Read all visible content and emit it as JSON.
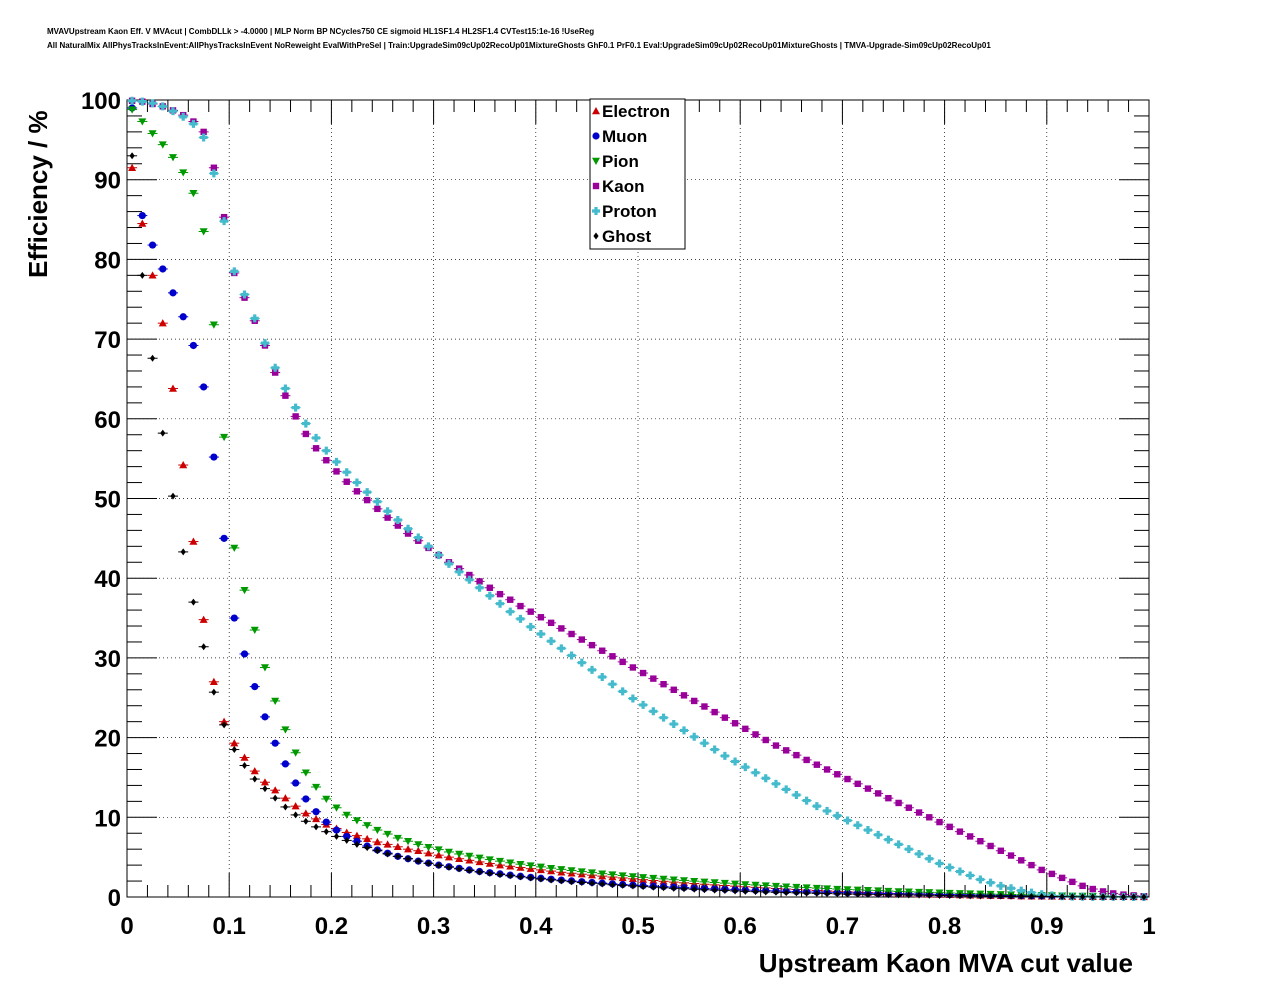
{
  "header": {
    "line1": "MVAVUpstream Kaon Eff. V MVAcut | CombDLLk > -4.0000 | MLP Norm BP NCycles750 CE sigmoid HL1SF1.4 HL2SF1.4 CVTest15:1e-16 !UseReg",
    "line2": "All NaturalMix AllPhysTracksInEvent:AllPhysTracksInEvent NoReweight EvalWithPreSel | Train:UpgradeSim09cUp02RecoUp01MixtureGhosts GhF0.1 PrF0.1 Eval:UpgradeSim09cUp02RecoUp01MixtureGhosts | TMVA-Upgrade-Sim09cUp02RecoUp01"
  },
  "chart_data": {
    "type": "scatter",
    "xlabel": "Upstream Kaon MVA cut value",
    "ylabel": "Efficiency / %",
    "xlim": [
      0,
      1
    ],
    "ylim": [
      0,
      100
    ],
    "x_ticks": [
      "0",
      "0.1",
      "0.2",
      "0.3",
      "0.4",
      "0.5",
      "0.6",
      "0.7",
      "0.8",
      "0.9",
      "1"
    ],
    "y_ticks": [
      "0",
      "10",
      "20",
      "30",
      "40",
      "50",
      "60",
      "70",
      "80",
      "90",
      "100"
    ],
    "grid": true,
    "legend_position": "top-center",
    "x": [
      0.005,
      0.015,
      0.025,
      0.035,
      0.045,
      0.055,
      0.065,
      0.075,
      0.085,
      0.095,
      0.105,
      0.115,
      0.125,
      0.135,
      0.145,
      0.155,
      0.165,
      0.175,
      0.185,
      0.195,
      0.205,
      0.215,
      0.225,
      0.235,
      0.245,
      0.255,
      0.265,
      0.275,
      0.285,
      0.295,
      0.305,
      0.315,
      0.325,
      0.335,
      0.345,
      0.355,
      0.365,
      0.375,
      0.385,
      0.395,
      0.405,
      0.415,
      0.425,
      0.435,
      0.445,
      0.455,
      0.465,
      0.475,
      0.485,
      0.495,
      0.505,
      0.515,
      0.525,
      0.535,
      0.545,
      0.555,
      0.565,
      0.575,
      0.585,
      0.595,
      0.605,
      0.615,
      0.625,
      0.635,
      0.645,
      0.655,
      0.665,
      0.675,
      0.685,
      0.695,
      0.705,
      0.715,
      0.725,
      0.735,
      0.745,
      0.755,
      0.765,
      0.775,
      0.785,
      0.795,
      0.805,
      0.815,
      0.825,
      0.835,
      0.845,
      0.855,
      0.865,
      0.875,
      0.885,
      0.895,
      0.905,
      0.915,
      0.925,
      0.935,
      0.945,
      0.955,
      0.965,
      0.975,
      0.985,
      0.995
    ],
    "series": [
      {
        "name": "Electron",
        "color": "#cc0000",
        "marker": "triangle-up",
        "values": [
          91.5,
          84.5,
          78.0,
          72.0,
          63.8,
          54.2,
          44.6,
          34.8,
          27.0,
          22.0,
          19.3,
          17.5,
          15.8,
          14.4,
          13.4,
          12.4,
          11.4,
          10.5,
          9.8,
          9.1,
          8.6,
          8.1,
          7.7,
          7.3,
          6.9,
          6.6,
          6.3,
          6.0,
          5.8,
          5.5,
          5.25,
          5.0,
          4.8,
          4.6,
          4.4,
          4.2,
          4.0,
          3.85,
          3.7,
          3.55,
          3.4,
          3.25,
          3.1,
          2.98,
          2.86,
          2.74,
          2.62,
          2.5,
          2.39,
          2.28,
          2.17,
          2.07,
          1.97,
          1.87,
          1.78,
          1.69,
          1.6,
          1.52,
          1.44,
          1.36,
          1.28,
          1.21,
          1.14,
          1.07,
          1.0,
          0.94,
          0.88,
          0.82,
          0.76,
          0.71,
          0.66,
          0.61,
          0.56,
          0.52,
          0.48,
          0.44,
          0.4,
          0.36,
          0.33,
          0.3,
          0.27,
          0.24,
          0.21,
          0.19,
          0.17,
          0.15,
          0.13,
          0.11,
          0.09,
          0.08,
          0.07,
          0.06,
          0.05,
          0.04,
          0.03,
          0.03,
          0.02,
          0.02,
          0.01,
          0.01
        ]
      },
      {
        "name": "Muon",
        "color": "#0000cc",
        "marker": "circle",
        "values": [
          99.0,
          85.5,
          81.8,
          78.8,
          75.8,
          72.8,
          69.2,
          64.0,
          55.2,
          45.0,
          35.0,
          30.5,
          26.4,
          22.6,
          19.3,
          16.7,
          14.3,
          12.3,
          10.7,
          9.4,
          8.4,
          7.6,
          7.0,
          6.4,
          5.9,
          5.5,
          5.1,
          4.8,
          4.5,
          4.25,
          4.0,
          3.8,
          3.6,
          3.4,
          3.2,
          3.05,
          2.9,
          2.75,
          2.6,
          2.47,
          2.35,
          2.23,
          2.12,
          2.02,
          1.92,
          1.83,
          1.74,
          1.65,
          1.57,
          1.5,
          1.43,
          1.36,
          1.3,
          1.24,
          1.18,
          1.12,
          1.07,
          1.02,
          0.97,
          0.92,
          0.88,
          0.84,
          0.8,
          0.76,
          0.72,
          0.68,
          0.65,
          0.62,
          0.59,
          0.56,
          0.53,
          0.5,
          0.47,
          0.45,
          0.43,
          0.41,
          0.39,
          0.37,
          0.35,
          0.33,
          0.31,
          0.29,
          0.27,
          0.25,
          0.23,
          0.21,
          0.19,
          0.17,
          0.15,
          0.13,
          0.11,
          0.1,
          0.09,
          0.08,
          0.07,
          0.06,
          0.05,
          0.04,
          0.03,
          0.02
        ]
      },
      {
        "name": "Pion",
        "color": "#009900",
        "marker": "triangle-down",
        "values": [
          98.8,
          97.3,
          95.8,
          94.4,
          92.8,
          90.9,
          88.3,
          83.5,
          71.8,
          57.7,
          43.8,
          38.5,
          33.5,
          28.8,
          24.6,
          21.0,
          18.1,
          15.6,
          13.8,
          12.3,
          11.2,
          10.3,
          9.6,
          9.0,
          8.4,
          7.9,
          7.4,
          7.0,
          6.6,
          6.25,
          5.95,
          5.65,
          5.4,
          5.15,
          4.92,
          4.7,
          4.5,
          4.3,
          4.12,
          3.95,
          3.78,
          3.62,
          3.47,
          3.33,
          3.19,
          3.06,
          2.93,
          2.81,
          2.69,
          2.58,
          2.47,
          2.37,
          2.27,
          2.17,
          2.08,
          1.99,
          1.9,
          1.82,
          1.74,
          1.66,
          1.58,
          1.51,
          1.44,
          1.37,
          1.3,
          1.24,
          1.18,
          1.12,
          1.06,
          1.0,
          0.95,
          0.9,
          0.85,
          0.8,
          0.75,
          0.7,
          0.66,
          0.62,
          0.58,
          0.54,
          0.5,
          0.46,
          0.43,
          0.4,
          0.37,
          0.34,
          0.31,
          0.28,
          0.25,
          0.22,
          0.19,
          0.17,
          0.15,
          0.13,
          0.11,
          0.09,
          0.07,
          0.05,
          0.03,
          0.02
        ]
      },
      {
        "name": "Kaon",
        "color": "#990099",
        "marker": "square",
        "values": [
          99.9,
          99.8,
          99.5,
          99.2,
          98.7,
          98.1,
          97.3,
          96.0,
          91.5,
          85.3,
          78.3,
          75.2,
          72.3,
          69.2,
          65.8,
          62.9,
          60.3,
          58.1,
          56.3,
          54.8,
          53.4,
          52.1,
          50.9,
          49.8,
          48.7,
          47.6,
          46.6,
          45.6,
          44.7,
          43.8,
          42.9,
          42.0,
          41.2,
          40.4,
          39.6,
          38.8,
          38.0,
          37.3,
          36.5,
          35.8,
          35.1,
          34.4,
          33.7,
          33.0,
          32.3,
          31.6,
          30.9,
          30.2,
          29.5,
          28.8,
          28.1,
          27.4,
          26.7,
          26.0,
          25.3,
          24.6,
          23.9,
          23.2,
          22.5,
          21.8,
          21.1,
          20.4,
          19.7,
          19.0,
          18.4,
          17.8,
          17.2,
          16.6,
          16.0,
          15.4,
          14.8,
          14.2,
          13.6,
          13.0,
          12.4,
          11.8,
          11.2,
          10.6,
          10.0,
          9.4,
          8.8,
          8.2,
          7.6,
          7.0,
          6.4,
          5.8,
          5.2,
          4.6,
          4.0,
          3.4,
          2.9,
          2.4,
          1.9,
          1.4,
          1.0,
          0.7,
          0.45,
          0.3,
          0.2,
          0.1
        ]
      },
      {
        "name": "Proton",
        "color": "#44bbcc",
        "marker": "cross",
        "values": [
          99.9,
          99.8,
          99.6,
          99.2,
          98.6,
          97.9,
          97.0,
          95.3,
          90.8,
          84.8,
          78.5,
          75.6,
          72.6,
          69.5,
          66.4,
          63.8,
          61.4,
          59.4,
          57.6,
          56.0,
          54.6,
          53.3,
          52.0,
          50.8,
          49.6,
          48.4,
          47.3,
          46.2,
          45.1,
          44.0,
          42.9,
          41.8,
          40.8,
          39.8,
          38.8,
          37.8,
          36.8,
          35.8,
          34.9,
          33.9,
          33.0,
          32.1,
          31.2,
          30.3,
          29.4,
          28.5,
          27.6,
          26.7,
          25.8,
          24.9,
          24.1,
          23.3,
          22.5,
          21.7,
          20.9,
          20.1,
          19.3,
          18.5,
          17.7,
          17.0,
          16.3,
          15.6,
          14.9,
          14.2,
          13.5,
          12.8,
          12.1,
          11.4,
          10.8,
          10.2,
          9.6,
          9.0,
          8.4,
          7.8,
          7.2,
          6.6,
          6.0,
          5.4,
          4.8,
          4.2,
          3.7,
          3.2,
          2.7,
          2.2,
          1.8,
          1.4,
          1.1,
          0.8,
          0.55,
          0.35,
          0.2,
          0.1,
          0.05,
          0.03,
          0.02,
          0.01,
          0.01,
          0.01,
          0.0,
          0.0
        ]
      },
      {
        "name": "Ghost",
        "color": "#000000",
        "marker": "diamond",
        "values": [
          93.0,
          78.0,
          67.6,
          58.2,
          50.3,
          43.3,
          37.0,
          31.4,
          25.7,
          21.6,
          18.5,
          16.5,
          14.8,
          13.6,
          12.4,
          11.3,
          10.3,
          9.5,
          8.8,
          8.2,
          7.6,
          7.1,
          6.6,
          6.2,
          5.8,
          5.4,
          5.1,
          4.8,
          4.5,
          4.22,
          3.97,
          3.74,
          3.53,
          3.33,
          3.14,
          2.97,
          2.81,
          2.66,
          2.52,
          2.39,
          2.26,
          2.14,
          2.03,
          1.92,
          1.82,
          1.72,
          1.63,
          1.54,
          1.46,
          1.38,
          1.3,
          1.23,
          1.16,
          1.09,
          1.03,
          0.97,
          0.91,
          0.86,
          0.81,
          0.76,
          0.71,
          0.67,
          0.63,
          0.59,
          0.55,
          0.52,
          0.49,
          0.46,
          0.43,
          0.4,
          0.37,
          0.35,
          0.33,
          0.31,
          0.29,
          0.27,
          0.25,
          0.23,
          0.21,
          0.19,
          0.17,
          0.15,
          0.14,
          0.13,
          0.12,
          0.11,
          0.1,
          0.09,
          0.08,
          0.07,
          0.06,
          0.05,
          0.04,
          0.03,
          0.02,
          0.02,
          0.01,
          0.01,
          0.01,
          0.0
        ]
      }
    ]
  }
}
